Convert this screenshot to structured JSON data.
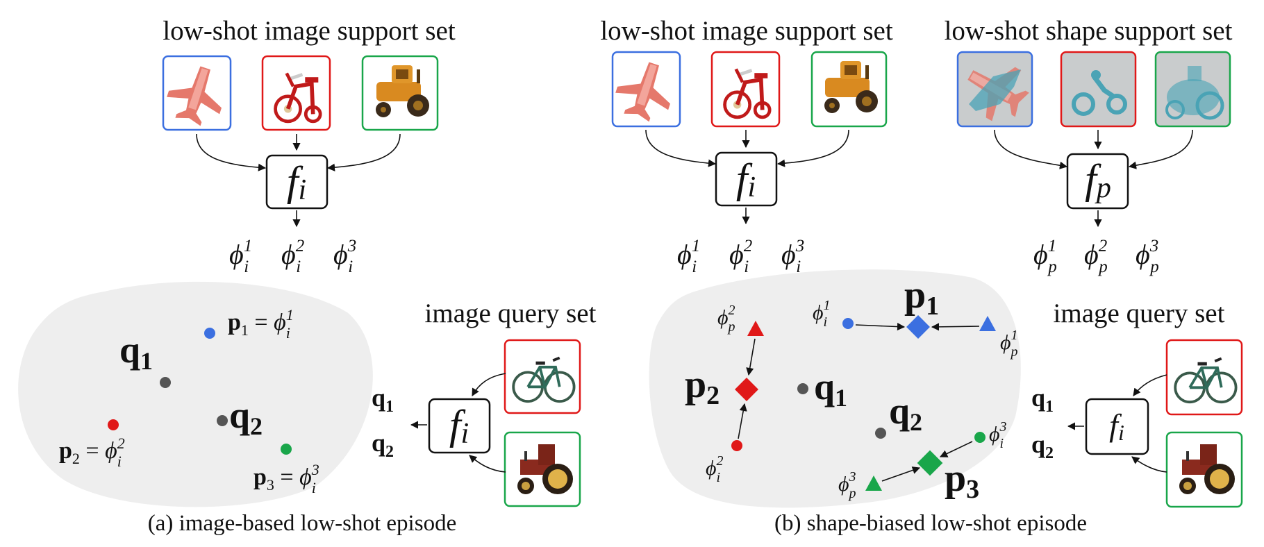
{
  "panel_a": {
    "support_title": "low-shot image support set",
    "query_title": "image query set",
    "caption": "(a) image-based low-shot episode",
    "encoder": {
      "symbol": "f",
      "sub": "i"
    },
    "features": [
      {
        "base": "ϕ",
        "sub": "i",
        "sup": "1"
      },
      {
        "base": "ϕ",
        "sub": "i",
        "sup": "2"
      },
      {
        "base": "ϕ",
        "sub": "i",
        "sup": "3"
      }
    ],
    "proto_eqs": [
      {
        "name": "p",
        "sub": "1",
        "rhs": "ϕ",
        "rsub": "i",
        "rsup": "1"
      },
      {
        "name": "p",
        "sub": "2",
        "rhs": "ϕ",
        "rsub": "i",
        "rsup": "2"
      },
      {
        "name": "p",
        "sub": "3",
        "rhs": "ϕ",
        "rsub": "i",
        "rsup": "3"
      }
    ],
    "queries": [
      {
        "name": "q",
        "sub": "1"
      },
      {
        "name": "q",
        "sub": "2"
      }
    ],
    "query_labels": [
      {
        "name": "q",
        "sub": "1"
      },
      {
        "name": "q",
        "sub": "2"
      }
    ],
    "support_images": [
      "airplane",
      "tricycle",
      "tractor"
    ],
    "query_images": [
      "bicycle",
      "tractor"
    ]
  },
  "panel_b": {
    "image_support_title": "low-shot image support set",
    "shape_support_title": "low-shot shape support set",
    "query_title": "image query set",
    "caption": "(b) shape-biased low-shot episode",
    "image_encoder": {
      "symbol": "f",
      "sub": "i"
    },
    "shape_encoder": {
      "symbol": "f",
      "sub": "p"
    },
    "query_encoder": {
      "symbol": "f",
      "sub": "i"
    },
    "image_features": [
      {
        "base": "ϕ",
        "sub": "i",
        "sup": "1"
      },
      {
        "base": "ϕ",
        "sub": "i",
        "sup": "2"
      },
      {
        "base": "ϕ",
        "sub": "i",
        "sup": "3"
      }
    ],
    "shape_features": [
      {
        "base": "ϕ",
        "sub": "p",
        "sup": "1"
      },
      {
        "base": "ϕ",
        "sub": "p",
        "sup": "2"
      },
      {
        "base": "ϕ",
        "sub": "p",
        "sup": "3"
      }
    ],
    "protos": [
      {
        "name": "p",
        "sub": "1"
      },
      {
        "name": "p",
        "sub": "2"
      },
      {
        "name": "p",
        "sub": "3"
      }
    ],
    "queries": [
      {
        "name": "q",
        "sub": "1"
      },
      {
        "name": "q",
        "sub": "2"
      }
    ],
    "query_labels": [
      {
        "name": "q",
        "sub": "1"
      },
      {
        "name": "q",
        "sub": "2"
      }
    ],
    "point_labels": [
      {
        "base": "ϕ",
        "sub": "i",
        "sup": "1"
      },
      {
        "base": "ϕ",
        "sub": "p",
        "sup": "1"
      },
      {
        "base": "ϕ",
        "sub": "p",
        "sup": "2"
      },
      {
        "base": "ϕ",
        "sub": "i",
        "sup": "2"
      },
      {
        "base": "ϕ",
        "sub": "i",
        "sup": "3"
      },
      {
        "base": "ϕ",
        "sub": "p",
        "sup": "3"
      }
    ],
    "support_images": [
      "airplane",
      "tricycle",
      "tractor"
    ],
    "shape_images": [
      "airplane point cloud",
      "tricycle point cloud",
      "tractor point cloud"
    ],
    "query_images": [
      "bicycle",
      "tractor"
    ]
  },
  "colors": {
    "class1": "#3b6fe0",
    "class2": "#e01818",
    "class3": "#19a64a",
    "query": "#555555",
    "embedding_bg": "#eeeeee",
    "shape_bg": "#c9cccd",
    "shape_points": "#4aa3b5"
  }
}
